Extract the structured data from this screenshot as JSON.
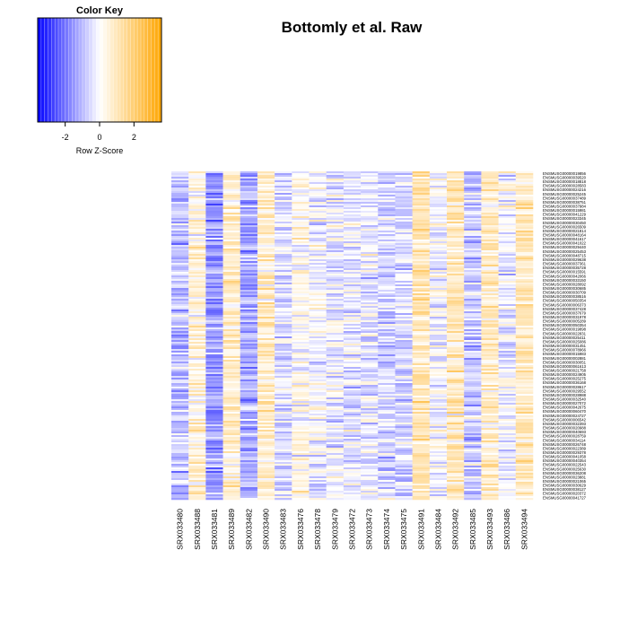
{
  "chart_data": {
    "type": "heatmap",
    "title": "Bottomly et al. Raw",
    "color_key": {
      "title": "Color Key",
      "xlabel": "Row Z-Score",
      "ticks": [
        "-2",
        "0",
        "2"
      ],
      "tick_values": [
        -2,
        0,
        2
      ],
      "range": [
        -3.6,
        3.6
      ],
      "low_color": "#0000ff",
      "mid_color": "#ffffff",
      "high_color": "#ffa500"
    },
    "columns": [
      "SRX033480",
      "SRX033488",
      "SRX033481",
      "SRX033489",
      "SRX033482",
      "SRX033490",
      "SRX033483",
      "SRX033476",
      "SRX033478",
      "SRX033479",
      "SRX033472",
      "SRX033473",
      "SRX033474",
      "SRX033475",
      "SRX033491",
      "SRX033484",
      "SRX033492",
      "SRX033485",
      "SRX033493",
      "SRX033486",
      "SRX033494"
    ],
    "column_mean_z": [
      -0.9,
      0.5,
      -1.4,
      0.6,
      -1.2,
      0.8,
      -0.5,
      0.2,
      -0.1,
      -0.2,
      -0.4,
      -0.3,
      -0.6,
      -0.5,
      1.0,
      -0.1,
      0.9,
      -0.8,
      0.8,
      -0.2,
      0.9
    ],
    "row_labels": [
      "ENSMUSG00000019856",
      "ENSMUSG00000039520",
      "ENSMUSG00000018818",
      "ENSMUSG00000028583",
      "ENSMUSG00000024216",
      "ENSMUSG00000025245",
      "ENSMUSG00000037489",
      "ENSMUSG00000038751",
      "ENSMUSG00000037984",
      "ENSMUSG00000015981",
      "ENSMUSG00000041229",
      "ENSMUSG00000023345",
      "ENSMUSG00000030450",
      "ENSMUSG00000026509",
      "ENSMUSG00000021814",
      "ENSMUSG00000048164",
      "ENSMUSG00000041617",
      "ENSMUSG00000041022",
      "ENSMUSG00000029440",
      "ENSMUSG00000025453",
      "ENSMUSG00000048715",
      "ENSMUSG00000029638",
      "ENSMUSG00000037361",
      "ENSMUSG00000035728",
      "ENSMUSG00000015591",
      "ENSMUSG00000042066",
      "ENSMUSG00000033150",
      "ENSMUSG00000028092",
      "ENSMUSG00000030685",
      "ENSMUSG00000030709",
      "ENSMUSG00000038516",
      "ENSMUSG00000050354",
      "ENSMUSG00000006373",
      "ENSMUSG00000037428",
      "ENSMUSG00000037679",
      "ENSMUSG00000031978",
      "ENSMUSG00000005289",
      "ENSMUSG00000050354",
      "ENSMUSG00000019898",
      "ENSMUSG00000022831",
      "ENSMUSG00000025411",
      "ENSMUSG00000025086",
      "ENSMUSG00000031451",
      "ENSMUSG00000078966",
      "ENSMUSG00000015983",
      "ENSMUSG00000002881",
      "ENSMUSG00000030051",
      "ENSMUSG00000061613",
      "ENSMUSG00000021758",
      "ENSMUSG00000024905",
      "ENSMUSG00000025275",
      "ENSMUSG00000036168",
      "ENSMUSG00000028617",
      "ENSMUSG00000029552",
      "ENSMUSG00000028988",
      "ENSMUSG00000032540",
      "ENSMUSG00000027072",
      "ENSMUSG00000042675",
      "ENSMUSG00000060470",
      "ENSMUSG00000024727",
      "ENSMUSG00000006542",
      "ENSMUSG00000032393",
      "ENSMUSG00000020988",
      "ENSMUSG00000040693",
      "ENSMUSG00000028759",
      "ENSMUSG00000034114",
      "ENSMUSG00000026748",
      "ENSMUSG00000022389",
      "ENSMUSG00000029378",
      "ENSMUSG00000041058",
      "ENSMUSG00000040354",
      "ENSMUSG00000022543",
      "ENSMUSG00000025630",
      "ENSMUSG00000036208",
      "ENSMUSG00000023881",
      "ENSMUSG00000021065",
      "ENSMUSG00000030629",
      "ENSMUSG00000038127",
      "ENSMUSG00000020372",
      "ENSMUSG00000041727"
    ]
  }
}
